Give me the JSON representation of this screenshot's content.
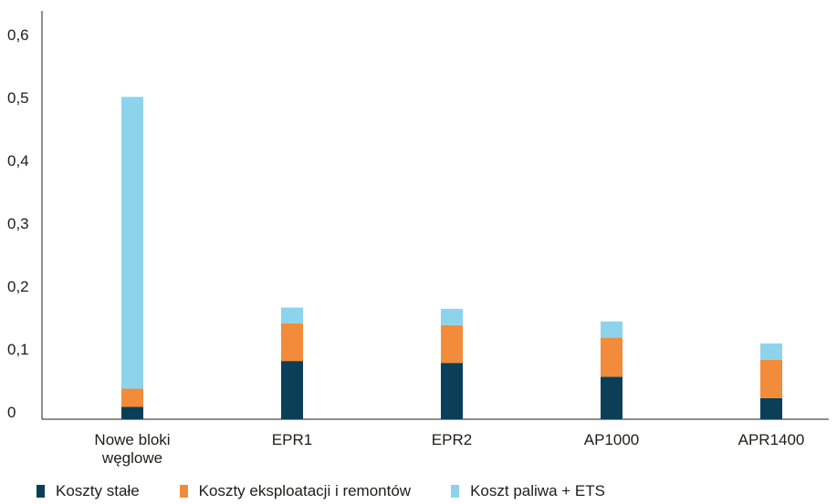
{
  "chart_data": {
    "type": "bar",
    "stacked": true,
    "title": "",
    "xlabel": "",
    "ylabel": "",
    "ylim": [
      0,
      0.65
    ],
    "yticks": [
      0,
      0.1,
      0.2,
      0.3,
      0.4,
      0.5,
      0.6
    ],
    "ytick_labels": [
      "0",
      "0,1",
      "0,2",
      "0,3",
      "0,4",
      "0,5",
      "0,6"
    ],
    "grid": false,
    "legend_position": "bottom",
    "categories": [
      "Nowe bloki węglowe",
      "EPR1",
      "EPR2",
      "AP1000",
      "APR1400"
    ],
    "category_labels": [
      [
        "Nowe bloki",
        "węglowe"
      ],
      [
        "EPR1"
      ],
      [
        "EPR2"
      ],
      [
        "AP1000"
      ],
      [
        "APR1400"
      ]
    ],
    "series": [
      {
        "name": "Koszty stałe",
        "color": "#0b3f57",
        "values": [
          0.008,
          0.081,
          0.078,
          0.056,
          0.022
        ]
      },
      {
        "name": "Koszty eksploatacji i remontów",
        "color": "#f28b3a",
        "values": [
          0.029,
          0.06,
          0.06,
          0.062,
          0.061
        ]
      },
      {
        "name": "Koszt paliwa + ETS",
        "color": "#8dd3ec",
        "values": [
          0.464,
          0.025,
          0.026,
          0.026,
          0.026
        ]
      }
    ]
  }
}
